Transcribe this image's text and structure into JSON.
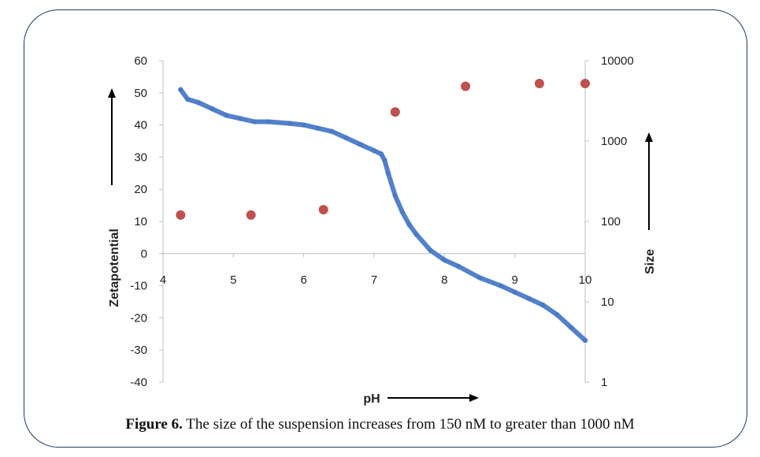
{
  "caption": {
    "label": "Figure 6.",
    "text": "The size of the suspension increases from 150 nM to greater than 1000 nM"
  },
  "chart_data": {
    "type": "scatter",
    "x_axis": {
      "label": "pH",
      "range": [
        4,
        10
      ],
      "ticks": [
        "4",
        "5",
        "6",
        "7",
        "8",
        "9",
        "10"
      ]
    },
    "y_left": {
      "label": "Zetapotential",
      "range": [
        -40,
        60
      ],
      "ticks": [
        "60",
        "50",
        "40",
        "30",
        "20",
        "10",
        "0",
        "-10",
        "-20",
        "-30",
        "-40"
      ]
    },
    "y_right": {
      "label": "Size",
      "scale": "log",
      "range": [
        1,
        10000
      ],
      "ticks": [
        "10000",
        "1000",
        "100",
        "10",
        "1"
      ]
    },
    "series": [
      {
        "name": "Zetapotential",
        "axis": "left",
        "style": "dense-line",
        "color": "#4a7ac7",
        "x": [
          4.25,
          4.35,
          4.5,
          4.7,
          4.9,
          5.1,
          5.3,
          5.5,
          5.8,
          6.0,
          6.2,
          6.4,
          6.6,
          6.8,
          7.0,
          7.1,
          7.15,
          7.2,
          7.3,
          7.4,
          7.5,
          7.6,
          7.8,
          8.0,
          8.2,
          8.5,
          8.8,
          9.0,
          9.2,
          9.4,
          9.6,
          9.8,
          10.0
        ],
        "y": [
          51,
          48,
          47,
          45,
          43,
          42,
          41,
          41,
          40.5,
          40,
          39,
          38,
          36,
          34,
          32,
          31,
          29,
          25,
          18,
          13,
          9,
          6,
          1,
          -2,
          -4,
          -7.5,
          -10,
          -12,
          -14,
          -16,
          -19,
          -23,
          -27
        ]
      },
      {
        "name": "Size",
        "axis": "right",
        "style": "markers",
        "color": "#c0504d",
        "x": [
          4.25,
          5.25,
          6.28,
          7.3,
          8.3,
          9.35,
          10.0
        ],
        "y": [
          120,
          120,
          140,
          2300,
          4800,
          5200,
          5200
        ]
      }
    ]
  }
}
